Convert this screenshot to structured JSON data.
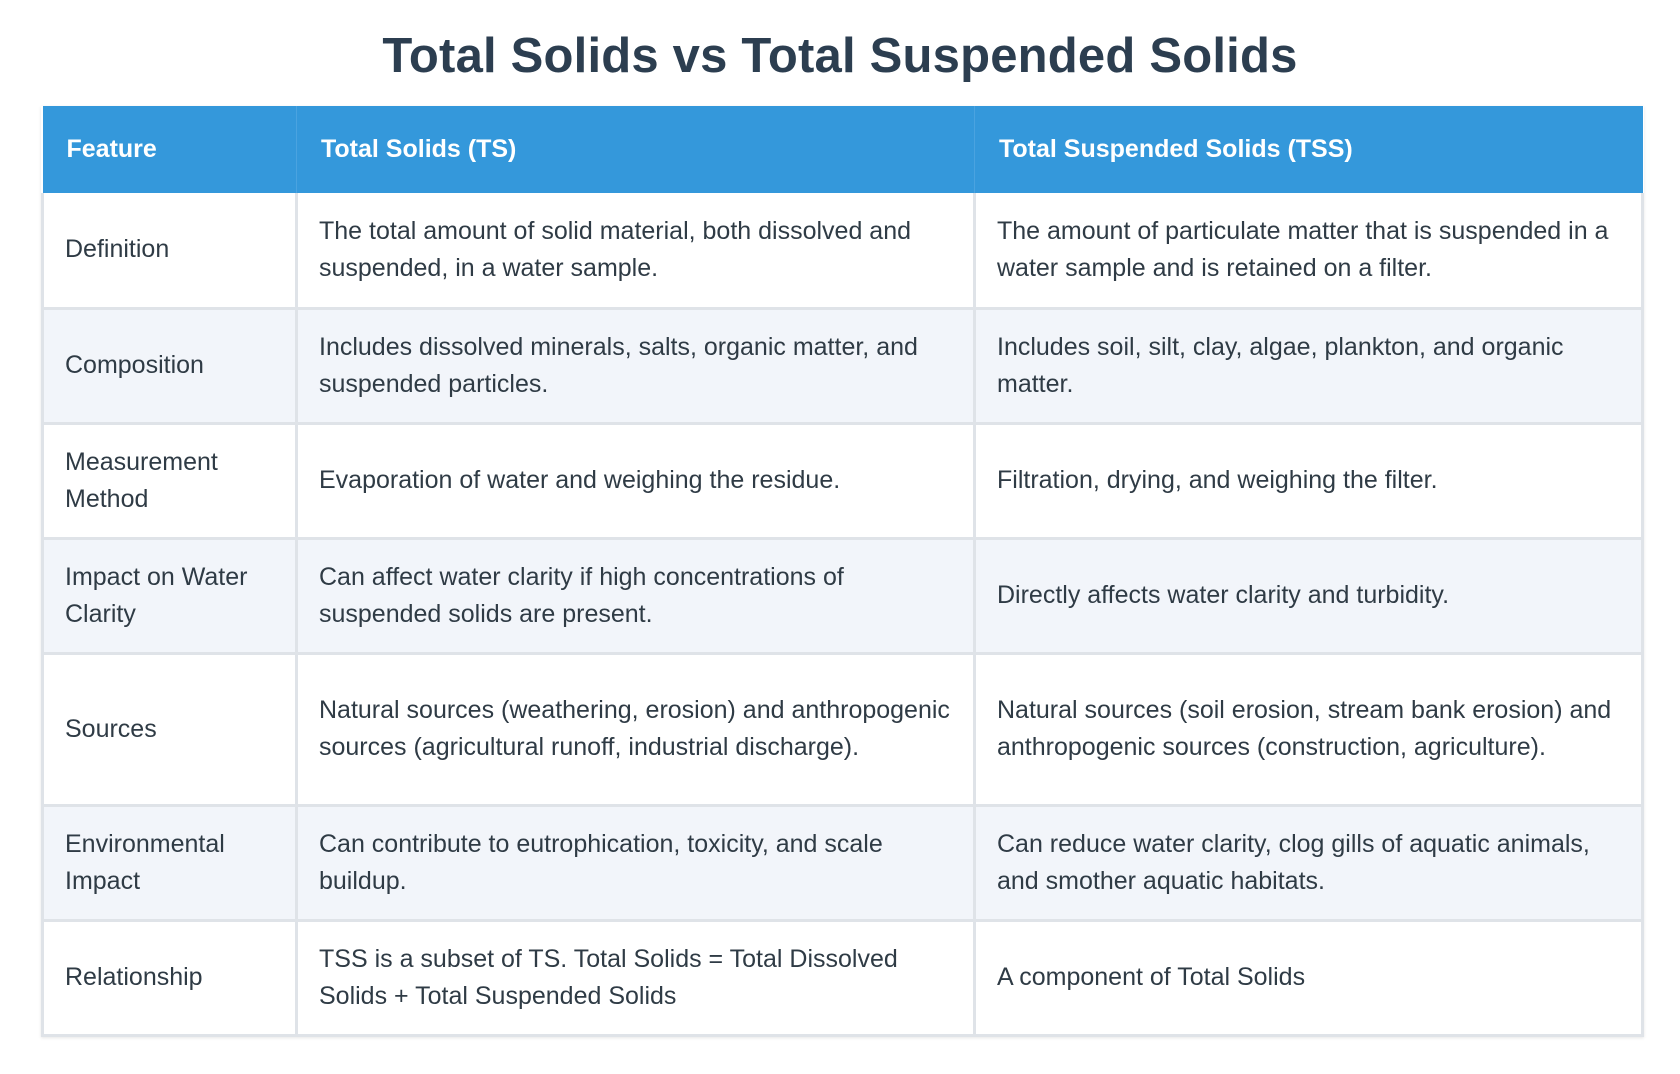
{
  "title": "Total Solids vs Total Suspended Solids",
  "table": {
    "headers": [
      "Feature",
      "Total Solids (TS)",
      "Total Suspended Solids (TSS)"
    ],
    "rows": [
      {
        "feature": "Definition",
        "ts": "The total amount of solid material, both dissolved and suspended, in a water sample.",
        "tss": "The amount of particulate matter that is suspended in a water sample and is retained on a filter."
      },
      {
        "feature": "Composition",
        "ts": "Includes dissolved minerals, salts, organic matter, and suspended particles.",
        "tss": "Includes soil, silt, clay, algae, plankton, and organic matter."
      },
      {
        "feature": "Measurement Method",
        "ts": "Evaporation of water and weighing the residue.",
        "tss": "Filtration, drying, and weighing the filter."
      },
      {
        "feature": "Impact on Water Clarity",
        "ts": "Can affect water clarity if high concentrations of suspended solids are present.",
        "tss": "Directly affects water clarity and turbidity."
      },
      {
        "feature": "Sources",
        "ts": "Natural sources (weathering, erosion) and anthropogenic sources (agricultural runoff, industrial discharge).",
        "tss": "Natural sources (soil erosion, stream bank erosion) and anthropogenic sources (construction, agriculture)."
      },
      {
        "feature": "Environmental Impact",
        "ts": "Can contribute to eutrophication, toxicity, and scale buildup.",
        "tss": "Can reduce water clarity, clog gills of aquatic animals, and smother aquatic habitats."
      },
      {
        "feature": "Relationship",
        "ts": "TSS is a subset of TS. Total Solids = Total Dissolved Solids + Total Suspended Solids",
        "tss": "A component of Total Solids"
      }
    ]
  },
  "colors": {
    "header_background": "#3498db",
    "title_text": "#2c3e50",
    "alternate_row": "#f2f5fa"
  }
}
